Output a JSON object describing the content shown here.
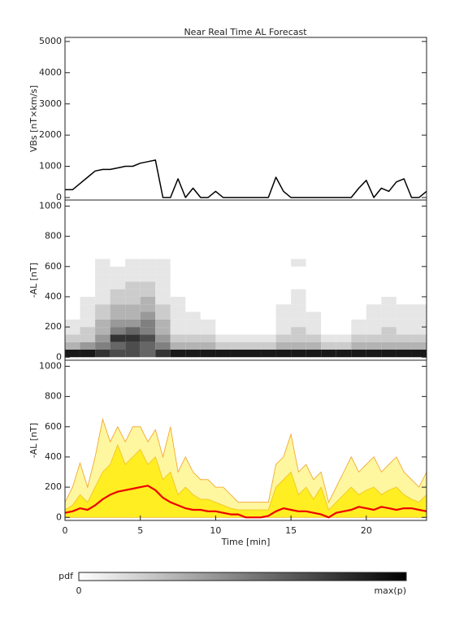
{
  "chart_data": [
    {
      "type": "line",
      "title": "Near Real Time AL Forecast",
      "ylabel": "VBs [nT×km/s]",
      "color": "#000000",
      "x": [
        0,
        0.5,
        1,
        1.5,
        2,
        2.5,
        3,
        3.5,
        4,
        4.5,
        5,
        5.5,
        6,
        6.5,
        7,
        7.5,
        8,
        8.5,
        9,
        9.5,
        10,
        10.5,
        11,
        11.5,
        12,
        12.5,
        13,
        13.5,
        14,
        14.5,
        15,
        15.5,
        16,
        16.5,
        17,
        17.5,
        18,
        18.5,
        19,
        19.5,
        20,
        20.5,
        21,
        21.5,
        22,
        22.5,
        23,
        23.5,
        24
      ],
      "values": [
        250,
        250,
        450,
        650,
        850,
        900,
        900,
        950,
        1000,
        1000,
        1100,
        1150,
        1200,
        0,
        0,
        600,
        0,
        300,
        0,
        0,
        200,
        0,
        0,
        0,
        0,
        0,
        0,
        0,
        650,
        200,
        0,
        0,
        0,
        0,
        0,
        0,
        0,
        0,
        0,
        300,
        550,
        0,
        300,
        200,
        500,
        600,
        0,
        0,
        200
      ],
      "xlim": [
        0,
        24
      ],
      "ylim": [
        -80,
        5130
      ],
      "yticks": [
        0,
        1000,
        2000,
        3000,
        4000,
        5000
      ]
    },
    {
      "type": "heatmap",
      "ylabel": "-AL [nT]",
      "color": "#000000",
      "x_bins": [
        0,
        1,
        2,
        3,
        4,
        5,
        6,
        7,
        8,
        9,
        10,
        11,
        12,
        13,
        14,
        15,
        16,
        17,
        18,
        19,
        20,
        21,
        22,
        23,
        24
      ],
      "y_bins": [
        0,
        50,
        100,
        150,
        200,
        250,
        300,
        350,
        400,
        450,
        500,
        550,
        600,
        650
      ],
      "z": [
        [
          0.9,
          0.9,
          0.8,
          0.7,
          0.7,
          0.6,
          0.8,
          0.9,
          0.9,
          0.9,
          0.9,
          0.9,
          0.9,
          0.9,
          0.9,
          0.9,
          0.9,
          0.9,
          0.9,
          0.9,
          0.9,
          0.9,
          0.9,
          0.9
        ],
        [
          0.3,
          0.4,
          0.5,
          0.6,
          0.7,
          0.6,
          0.5,
          0.3,
          0.3,
          0.3,
          0.2,
          0.2,
          0.2,
          0.2,
          0.3,
          0.3,
          0.3,
          0.2,
          0.2,
          0.3,
          0.3,
          0.3,
          0.3,
          0.3
        ],
        [
          0.2,
          0.2,
          0.4,
          0.8,
          0.8,
          0.7,
          0.4,
          0.2,
          0.2,
          0.2,
          0.1,
          0.1,
          0.1,
          0.1,
          0.2,
          0.2,
          0.2,
          0.1,
          0.1,
          0.2,
          0.2,
          0.2,
          0.2,
          0.2
        ],
        [
          0.1,
          0.2,
          0.3,
          0.5,
          0.6,
          0.5,
          0.3,
          0.1,
          0.1,
          0.1,
          0,
          0,
          0,
          0,
          0.1,
          0.2,
          0.1,
          0,
          0,
          0.1,
          0.1,
          0.2,
          0.1,
          0.1
        ],
        [
          0.1,
          0.1,
          0.3,
          0.4,
          0.4,
          0.5,
          0.3,
          0.1,
          0.1,
          0.1,
          0,
          0,
          0,
          0,
          0.1,
          0.1,
          0.1,
          0,
          0,
          0.1,
          0.1,
          0.1,
          0.1,
          0.1
        ],
        [
          0,
          0.1,
          0.2,
          0.3,
          0.3,
          0.4,
          0.2,
          0.1,
          0.1,
          0,
          0,
          0,
          0,
          0,
          0.1,
          0.1,
          0.1,
          0,
          0,
          0,
          0.1,
          0.1,
          0.1,
          0.1
        ],
        [
          0,
          0.1,
          0.2,
          0.3,
          0.3,
          0.3,
          0.2,
          0.1,
          0,
          0,
          0,
          0,
          0,
          0,
          0.1,
          0.1,
          0,
          0,
          0,
          0,
          0.1,
          0.1,
          0.1,
          0.1
        ],
        [
          0,
          0.1,
          0.1,
          0.2,
          0.2,
          0.3,
          0.1,
          0.1,
          0,
          0,
          0,
          0,
          0,
          0,
          0,
          0.1,
          0,
          0,
          0,
          0,
          0,
          0.1,
          0,
          0
        ],
        [
          0,
          0,
          0.1,
          0.2,
          0.2,
          0.2,
          0.1,
          0,
          0,
          0,
          0,
          0,
          0,
          0,
          0,
          0.1,
          0,
          0,
          0,
          0,
          0,
          0,
          0,
          0
        ],
        [
          0,
          0,
          0.1,
          0.1,
          0.2,
          0.2,
          0.1,
          0,
          0,
          0,
          0,
          0,
          0,
          0,
          0,
          0,
          0,
          0,
          0,
          0,
          0,
          0,
          0,
          0
        ],
        [
          0,
          0,
          0.1,
          0.1,
          0.1,
          0.1,
          0.1,
          0,
          0,
          0,
          0,
          0,
          0,
          0,
          0,
          0,
          0,
          0,
          0,
          0,
          0,
          0,
          0,
          0
        ],
        [
          0,
          0,
          0.1,
          0.1,
          0.1,
          0.1,
          0.1,
          0,
          0,
          0,
          0,
          0,
          0,
          0,
          0,
          0,
          0,
          0,
          0,
          0,
          0,
          0,
          0,
          0
        ],
        [
          0,
          0,
          0.1,
          0,
          0.1,
          0.1,
          0.1,
          0,
          0,
          0,
          0,
          0,
          0,
          0,
          0,
          0.1,
          0,
          0,
          0,
          0,
          0,
          0,
          0,
          0
        ]
      ],
      "xlim": [
        0,
        24
      ],
      "ylim": [
        -20,
        1040
      ],
      "yticks": [
        0,
        200,
        400,
        600,
        800,
        1000
      ]
    },
    {
      "type": "area",
      "ylabel": "-AL [nT]",
      "xlabel": "Time [min]",
      "x": [
        0,
        0.5,
        1,
        1.5,
        2,
        2.5,
        3,
        3.5,
        4,
        4.5,
        5,
        5.5,
        6,
        6.5,
        7,
        7.5,
        8,
        8.5,
        9,
        9.5,
        10,
        10.5,
        11,
        11.5,
        12,
        12.5,
        13,
        13.5,
        14,
        14.5,
        15,
        15.5,
        16,
        16.5,
        17,
        17.5,
        18,
        18.5,
        19,
        19.5,
        20,
        20.5,
        21,
        21.5,
        22,
        22.5,
        23,
        23.5,
        24
      ],
      "areas": [
        {
          "color": "#fff6a0",
          "edge_color": "#f0a020",
          "values": [
            100,
            200,
            360,
            200,
            400,
            650,
            500,
            600,
            500,
            600,
            600,
            500,
            580,
            400,
            600,
            300,
            400,
            300,
            250,
            250,
            200,
            200,
            150,
            100,
            100,
            100,
            100,
            100,
            350,
            400,
            550,
            300,
            350,
            250,
            300,
            100,
            200,
            300,
            400,
            300,
            350,
            400,
            300,
            350,
            400,
            300,
            250,
            200,
            300
          ]
        },
        {
          "color": "#ffee22",
          "edge_color": "#f0c020",
          "values": [
            50,
            80,
            150,
            100,
            200,
            300,
            350,
            480,
            350,
            400,
            450,
            350,
            400,
            250,
            300,
            150,
            200,
            150,
            120,
            120,
            100,
            80,
            60,
            50,
            50,
            50,
            50,
            50,
            200,
            250,
            300,
            150,
            200,
            120,
            200,
            50,
            100,
            150,
            200,
            150,
            180,
            200,
            150,
            180,
            200,
            150,
            120,
            100,
            150
          ]
        }
      ],
      "line": {
        "color": "#ee0000",
        "values": [
          30,
          40,
          60,
          50,
          80,
          120,
          150,
          170,
          180,
          190,
          200,
          210,
          180,
          130,
          100,
          80,
          60,
          50,
          50,
          40,
          40,
          30,
          20,
          20,
          0,
          0,
          0,
          10,
          40,
          60,
          50,
          40,
          40,
          30,
          20,
          0,
          30,
          40,
          50,
          70,
          60,
          50,
          70,
          60,
          50,
          60,
          60,
          50,
          40
        ]
      },
      "xlim": [
        0,
        24
      ],
      "ylim": [
        -20,
        1040
      ],
      "yticks": [
        0,
        200,
        400,
        600,
        800,
        1000
      ],
      "xticks": [
        0,
        5,
        10,
        15,
        20
      ]
    }
  ],
  "colorbar": {
    "label": "pdf",
    "min_label": "0",
    "max_label": "max(p)"
  }
}
